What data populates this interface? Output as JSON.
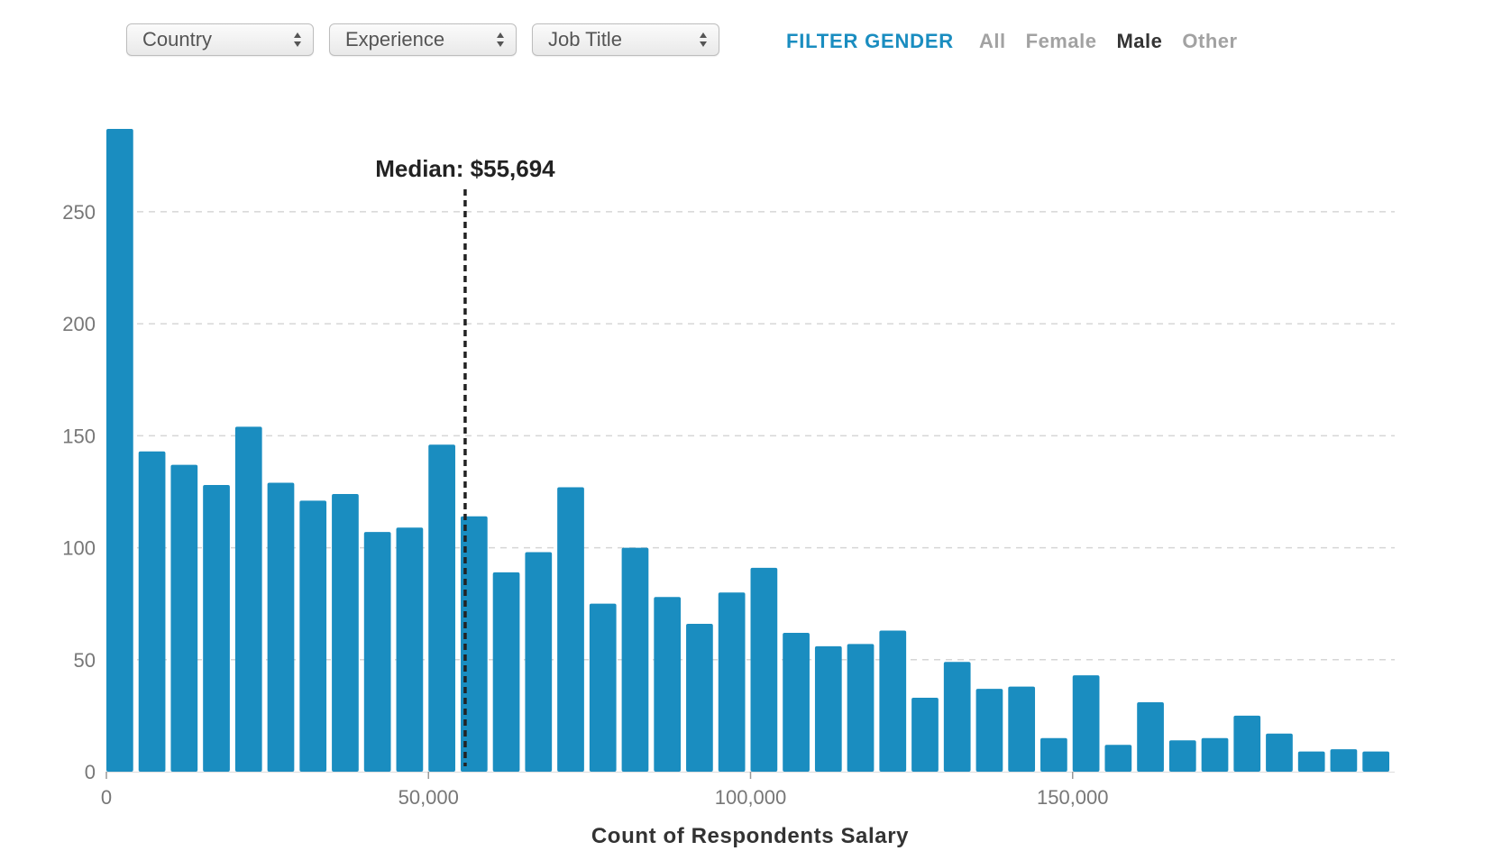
{
  "filters": {
    "dropdowns": [
      {
        "label": "Country"
      },
      {
        "label": "Experience"
      },
      {
        "label": "Job Title"
      }
    ]
  },
  "gender_filter": {
    "label": "FILTER GENDER",
    "options": [
      "All",
      "Female",
      "Male",
      "Other"
    ],
    "selected": "Male"
  },
  "colors": {
    "bar": "#1a8dc0",
    "accent": "#1a8dc0",
    "median_line": "#222222",
    "grid": "#d6d6d6"
  },
  "chart_data": {
    "type": "bar",
    "xlabel": "Count of Respondents Salary",
    "ylabel": "",
    "bin_width": 5000,
    "bin_starts": [
      0,
      5000,
      10000,
      15000,
      20000,
      25000,
      30000,
      35000,
      40000,
      45000,
      50000,
      55000,
      60000,
      65000,
      70000,
      75000,
      80000,
      85000,
      90000,
      95000,
      100000,
      105000,
      110000,
      115000,
      120000,
      125000,
      130000,
      135000,
      140000,
      145000,
      150000,
      155000,
      160000,
      165000,
      170000,
      175000,
      180000,
      185000,
      190000,
      195000
    ],
    "values": [
      287,
      143,
      137,
      128,
      154,
      129,
      121,
      124,
      107,
      109,
      146,
      114,
      89,
      98,
      127,
      75,
      100,
      78,
      66,
      80,
      91,
      62,
      56,
      57,
      63,
      33,
      49,
      37,
      38,
      15,
      43,
      12,
      31,
      14,
      15,
      25,
      17,
      9,
      10,
      9
    ],
    "xlim": [
      0,
      200000
    ],
    "ylim": [
      0,
      287
    ],
    "x_ticks": [
      0,
      50000,
      100000,
      150000
    ],
    "x_tick_labels": [
      "0",
      "50,000",
      "100,000",
      "150,000"
    ],
    "y_ticks": [
      0,
      50,
      100,
      150,
      200,
      250
    ],
    "y_tick_labels": [
      "0",
      "50",
      "100",
      "150",
      "200",
      "250"
    ],
    "grid": true,
    "median": {
      "value": 55694,
      "label": "Median: $55,694"
    }
  }
}
